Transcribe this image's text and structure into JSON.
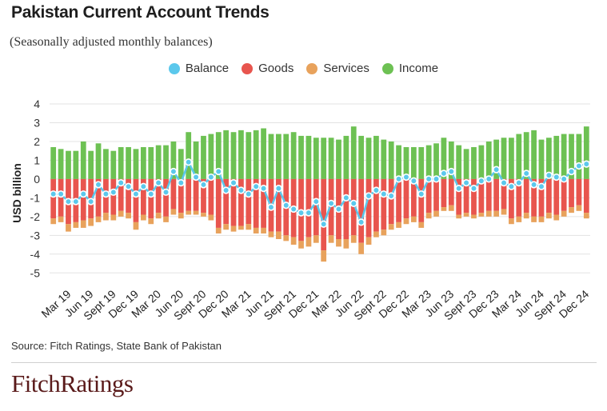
{
  "header": {
    "title": "Pakistan Current Account Trends",
    "subtitle": "(Seasonally adjusted monthly balances)"
  },
  "footer": {
    "source": "Source: Fitch Ratings, State Bank of Pakistan",
    "logo": "FitchRatings"
  },
  "colors": {
    "balance": "#5bc8ec",
    "goods": "#e8554e",
    "services": "#e8a25c",
    "income": "#6dc153"
  },
  "chart_data": {
    "type": "bar",
    "title": "Pakistan Current Account Trends",
    "subtitle": "(Seasonally adjusted monthly balances)",
    "ylabel": "USD billion",
    "ylim": [
      -5.5,
      4
    ],
    "yticks": [
      4,
      3,
      2,
      1,
      0,
      -1,
      -2,
      -3,
      -4,
      -5
    ],
    "legend_position": "top-center",
    "grid": true,
    "x_tick_labels": [
      "Mar 19",
      "Jun 19",
      "Sept 19",
      "Dec 19",
      "Mar 20",
      "Jun 20",
      "Sept 20",
      "Dec 20",
      "Mar 21",
      "Jun 21",
      "Sept 21",
      "Dec 21",
      "Mar 22",
      "Jun 22",
      "Sept 22",
      "Dec 22",
      "Mar 23",
      "Jun 23",
      "Sept 23",
      "Dec 23",
      "Mar 24",
      "Jun 24",
      "Sept 24",
      "Dec 24"
    ],
    "x_tick_positions": [
      2,
      5,
      8,
      11,
      14,
      17,
      20,
      23,
      26,
      29,
      32,
      35,
      38,
      41,
      44,
      47,
      50,
      53,
      56,
      59,
      62,
      65,
      68,
      71
    ],
    "months": 72,
    "series": [
      {
        "name": "Balance",
        "kind": "line",
        "values": [
          -0.8,
          -0.8,
          -1.2,
          -1.2,
          -0.8,
          -1.2,
          -0.3,
          -0.8,
          -0.7,
          -0.2,
          -0.4,
          -0.8,
          -0.4,
          -0.8,
          -0.2,
          -0.7,
          0.4,
          -0.2,
          0.9,
          0.1,
          -0.3,
          0.1,
          0.4,
          -0.6,
          -0.2,
          -0.6,
          -0.8,
          -0.4,
          -0.5,
          -1.5,
          -0.5,
          -1.4,
          -1.6,
          -1.8,
          -1.8,
          -1.2,
          -2.4,
          -1.3,
          -1.6,
          -1.0,
          -1.3,
          -2.3,
          -0.9,
          -0.6,
          -0.8,
          -0.9,
          0.0,
          0.1,
          -0.1,
          -0.8,
          0.0,
          0.0,
          0.3,
          0.4,
          -0.5,
          -0.2,
          -0.5,
          -0.1,
          0.0,
          0.5,
          -0.2,
          -0.4,
          -0.2,
          0.3,
          -0.3,
          -0.4,
          0.2,
          0.1,
          0.0,
          0.4,
          0.7,
          0.8
        ]
      },
      {
        "name": "Goods",
        "kind": "bar",
        "values": [
          -2.1,
          -2.0,
          -2.4,
          -2.3,
          -2.2,
          -2.1,
          -2.0,
          -1.8,
          -1.9,
          -1.7,
          -1.8,
          -2.3,
          -1.9,
          -2.1,
          -1.8,
          -2.0,
          -1.6,
          -1.8,
          -1.7,
          -1.7,
          -1.8,
          -1.9,
          -2.6,
          -2.4,
          -2.5,
          -2.5,
          -2.4,
          -2.6,
          -2.6,
          -2.8,
          -2.8,
          -3.0,
          -3.1,
          -3.3,
          -3.1,
          -3.0,
          -3.8,
          -3.0,
          -3.2,
          -3.2,
          -3.0,
          -3.4,
          -3.1,
          -2.8,
          -2.7,
          -2.4,
          -2.3,
          -2.1,
          -2.0,
          -2.3,
          -1.8,
          -1.7,
          -1.5,
          -1.4,
          -1.9,
          -1.8,
          -1.9,
          -1.8,
          -1.7,
          -1.7,
          -1.6,
          -2.1,
          -2.0,
          -1.8,
          -2.0,
          -2.0,
          -1.8,
          -1.9,
          -1.7,
          -1.5,
          -1.4,
          -1.8
        ]
      },
      {
        "name": "Services",
        "kind": "bar",
        "values": [
          -0.3,
          -0.3,
          -0.4,
          -0.3,
          -0.4,
          -0.4,
          -0.3,
          -0.4,
          -0.3,
          -0.3,
          -0.3,
          -0.4,
          -0.3,
          -0.3,
          -0.3,
          -0.3,
          -0.3,
          -0.3,
          -0.2,
          -0.2,
          -0.2,
          -0.3,
          -0.3,
          -0.3,
          -0.3,
          -0.2,
          -0.3,
          -0.3,
          -0.3,
          -0.3,
          -0.4,
          -0.3,
          -0.4,
          -0.4,
          -0.5,
          -0.4,
          -0.6,
          -0.4,
          -0.4,
          -0.5,
          -0.4,
          -0.6,
          -0.4,
          -0.3,
          -0.3,
          -0.3,
          -0.3,
          -0.3,
          -0.3,
          -0.3,
          -0.3,
          -0.3,
          -0.2,
          -0.3,
          -0.2,
          -0.2,
          -0.2,
          -0.2,
          -0.3,
          -0.3,
          -0.3,
          -0.3,
          -0.3,
          -0.3,
          -0.3,
          -0.3,
          -0.3,
          -0.3,
          -0.3,
          -0.3,
          -0.3,
          -0.3
        ]
      },
      {
        "name": "Income",
        "kind": "bar",
        "values": [
          1.7,
          1.6,
          1.5,
          1.5,
          2.0,
          1.5,
          1.9,
          1.6,
          1.5,
          1.7,
          1.7,
          1.6,
          1.7,
          1.7,
          1.8,
          1.8,
          2.0,
          1.6,
          2.5,
          2.0,
          2.3,
          2.4,
          2.5,
          2.6,
          2.5,
          2.6,
          2.5,
          2.6,
          2.7,
          2.4,
          2.4,
          2.4,
          2.5,
          2.3,
          2.3,
          2.2,
          2.2,
          2.2,
          2.1,
          2.3,
          2.8,
          2.3,
          2.2,
          2.3,
          2.1,
          2.0,
          1.8,
          1.7,
          1.7,
          1.7,
          1.8,
          1.9,
          2.2,
          2.0,
          1.8,
          1.6,
          1.7,
          1.8,
          2.0,
          2.1,
          2.2,
          2.2,
          2.4,
          2.5,
          2.6,
          2.1,
          2.2,
          2.3,
          2.4,
          2.4,
          2.4,
          2.8
        ]
      }
    ]
  }
}
